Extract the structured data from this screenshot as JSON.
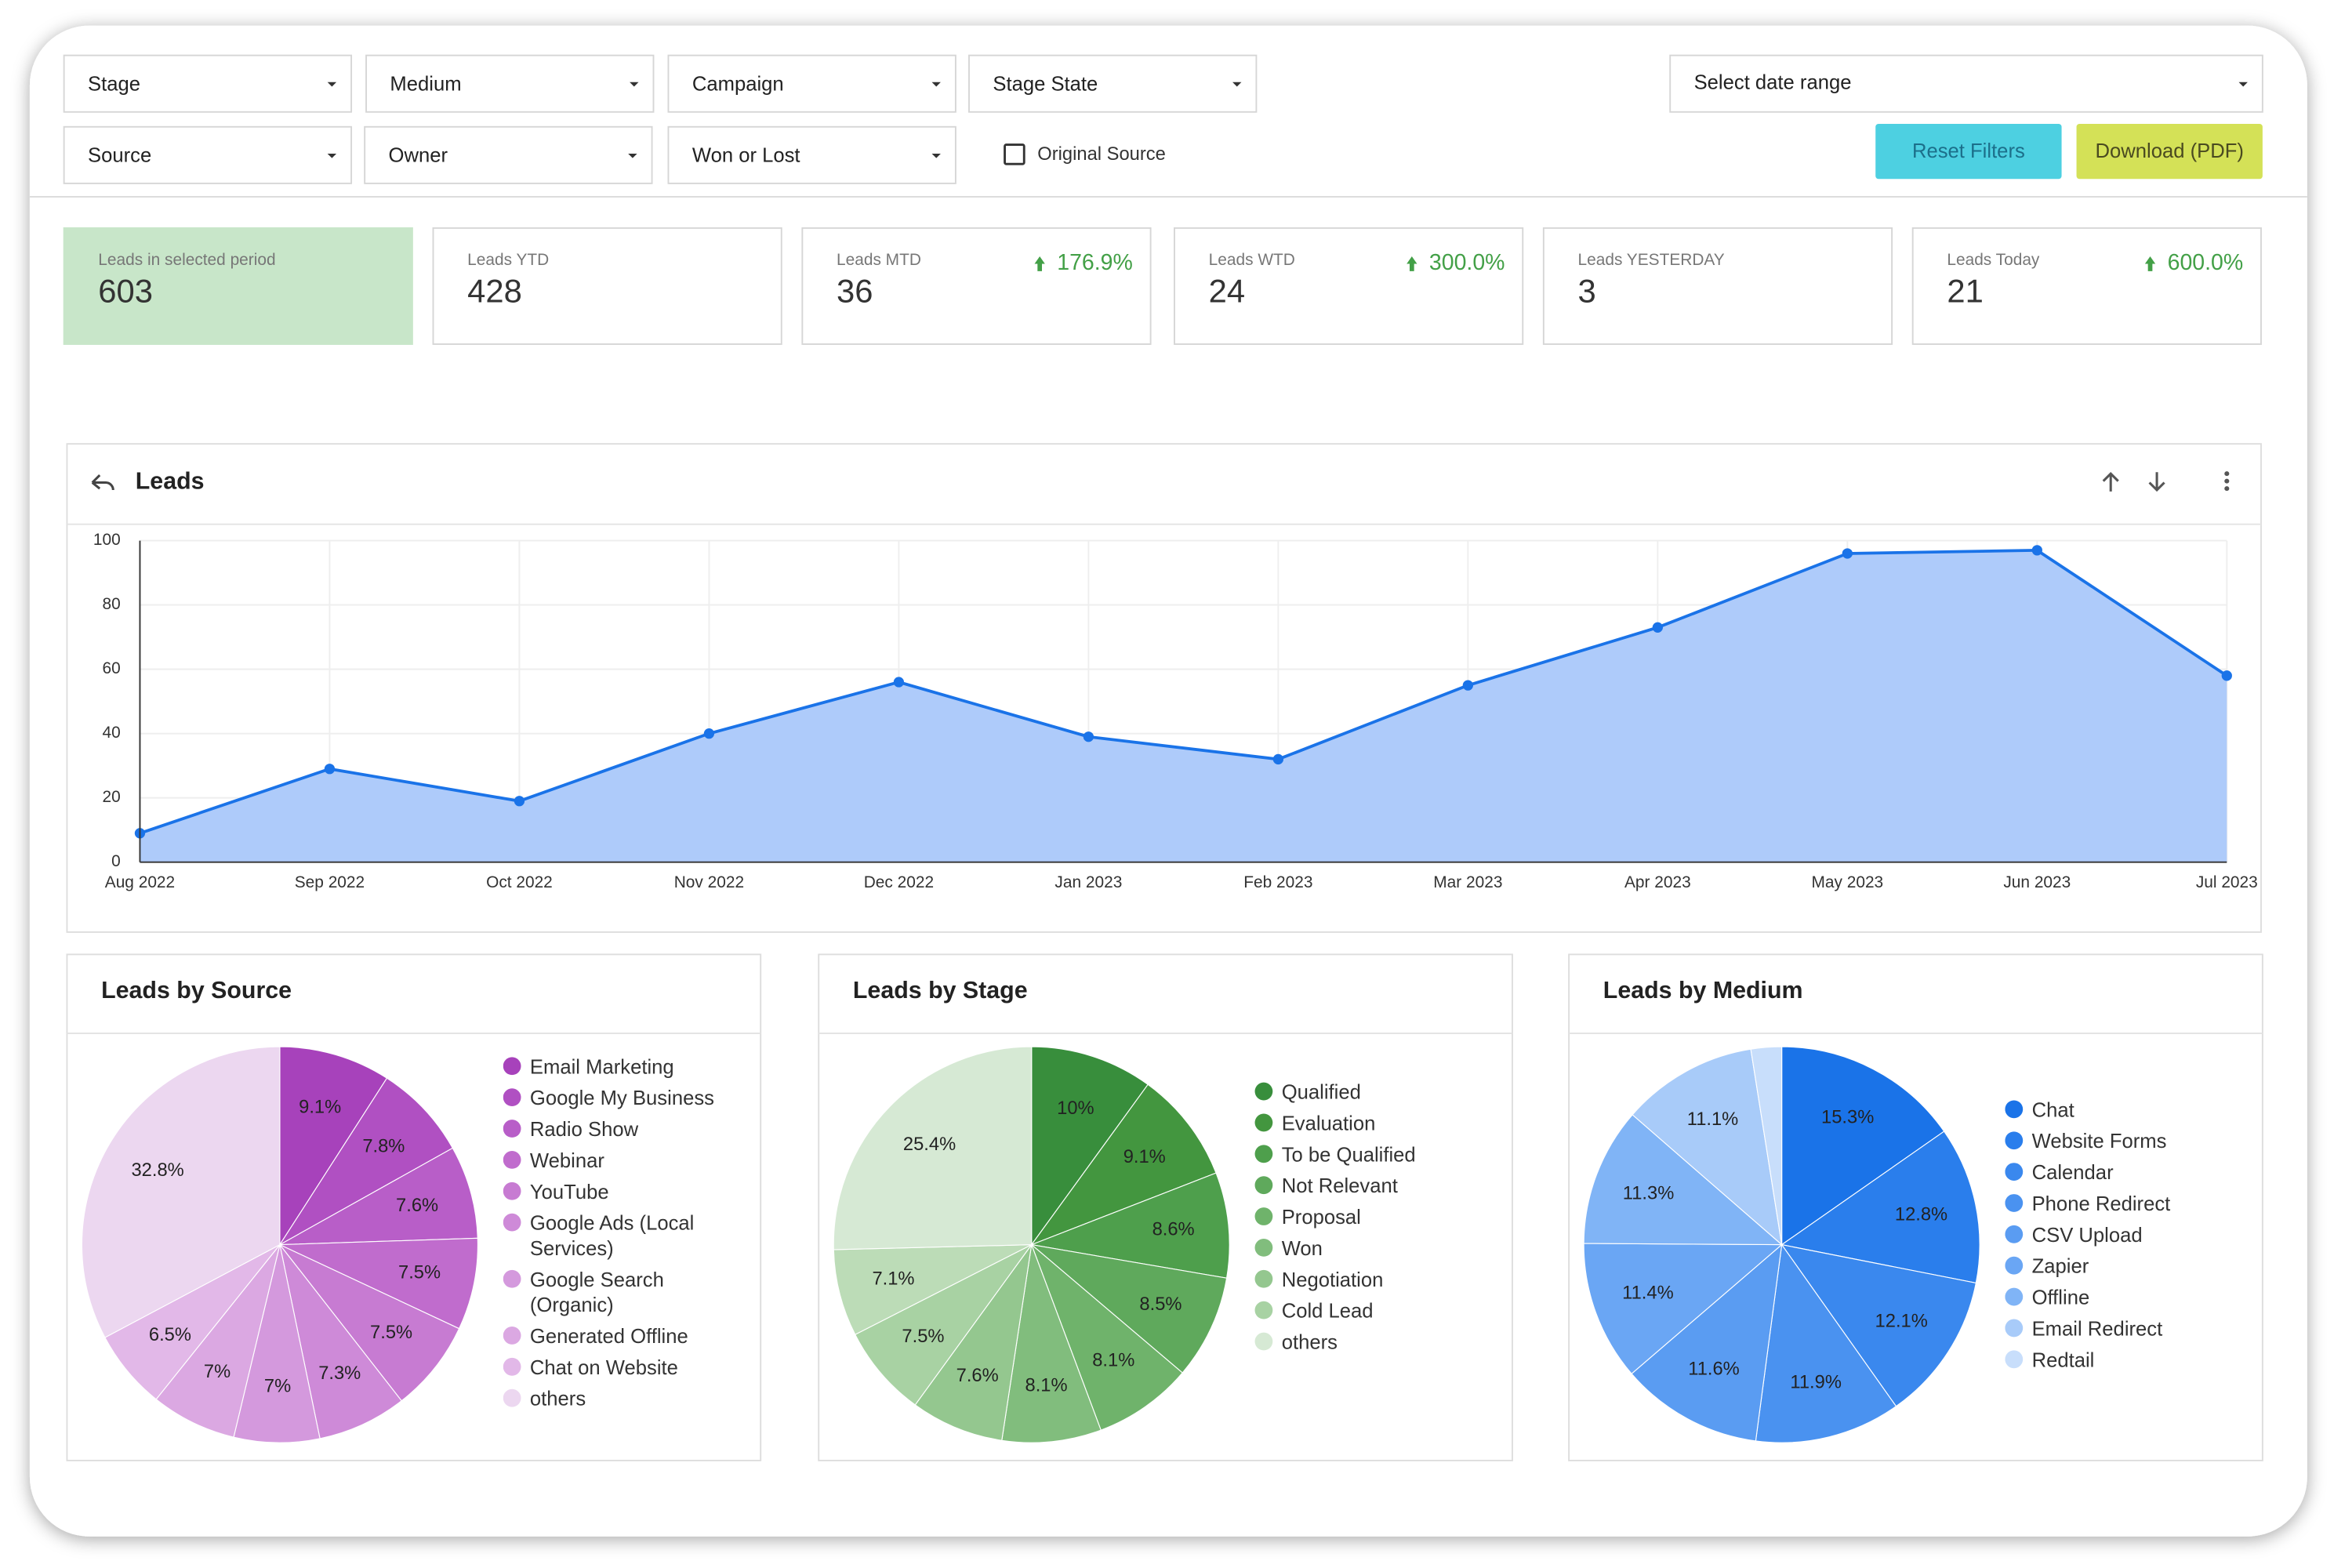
{
  "filters": [
    "Stage",
    "Medium",
    "Campaign",
    "Stage State",
    "Source",
    "Owner",
    "Won or Lost"
  ],
  "date_range": "Select date range",
  "checkbox": "Original Source",
  "buttons": [
    "Reset Filters",
    "Download (PDF)"
  ],
  "kpis": [
    {
      "label": "Leads in selected period",
      "value": "603"
    },
    {
      "label": "Leads YTD",
      "value": "428"
    },
    {
      "label": "Leads MTD",
      "value": "36",
      "change": "176.9%"
    },
    {
      "label": "Leads WTD",
      "value": "24",
      "change": "300.0%"
    },
    {
      "label": "Leads YESTERDAY",
      "value": "3"
    },
    {
      "label": "Leads Today",
      "value": "21",
      "change": "600.0%"
    }
  ],
  "chart_data": [
    {
      "type": "line",
      "title": "Leads",
      "categories": [
        "Aug 2022",
        "Sep 2022",
        "Oct 2022",
        "Nov 2022",
        "Dec 2022",
        "Jan 2023",
        "Feb 2023",
        "Mar 2023",
        "Apr 2023",
        "May 2023",
        "Jun 2023",
        "Jul 2023"
      ],
      "values": [
        9,
        29,
        19,
        40,
        56,
        39,
        32,
        55,
        73,
        96,
        97,
        58
      ],
      "color": "#1a73e8",
      "area_color": "#aecbfa",
      "ylim": [
        0,
        100
      ],
      "yticks": [
        0,
        20,
        40,
        60,
        80,
        100
      ],
      "grid": true
    },
    {
      "type": "pie",
      "title": "Leads by Source",
      "categories": [
        "Email Marketing",
        "Google My Business",
        "Radio Show",
        "Webinar",
        "YouTube",
        "Google Ads (Local Services)",
        "Google Search (Organic)",
        "Generated Offline",
        "Chat on Website",
        "others"
      ],
      "values": [
        9.1,
        7.8,
        7.6,
        7.5,
        7.5,
        7.3,
        7,
        7,
        6.5,
        32.8
      ],
      "value_labels": [
        "9.1%",
        "7.8%",
        "7.6%",
        "7.5%",
        "7.5%",
        "7.3%",
        "7%",
        "7%",
        "6.5%",
        "32.8%"
      ],
      "colors": [
        "#a742bb",
        "#b050c2",
        "#b85ec8",
        "#c06ccd",
        "#c77bd2",
        "#ce8ad8",
        "#d499dd",
        "#dba8e2",
        "#e2b8e8",
        "#ecd7f0"
      ]
    },
    {
      "type": "pie",
      "title": "Leads by Stage",
      "categories": [
        "Qualified",
        "Evaluation",
        "To be Qualified",
        "Not Relevant",
        "Proposal",
        "Won",
        "Negotiation",
        "Cold Lead",
        null,
        "others"
      ],
      "values": [
        10,
        9.1,
        8.6,
        8.5,
        8.1,
        8.1,
        7.6,
        7.5,
        7.1,
        25.4
      ],
      "value_labels": [
        "10%",
        "9.1%",
        "8.6%",
        "8.5%",
        "8.1%",
        "8.1%",
        "7.6%",
        "7.5%",
        "7.1%",
        "25.4%"
      ],
      "colors": [
        "#388e3c",
        "#43963f",
        "#4e9f4c",
        "#5fa95c",
        "#6fb36b",
        "#81bd7d",
        "#94c78f",
        "#a8d2a3",
        "#bcdcb7",
        "#d6e9d4"
      ]
    },
    {
      "type": "pie",
      "title": "Leads by Medium",
      "categories": [
        "Chat",
        "Website Forms",
        "Calendar",
        "Phone Redirect",
        "CSV Upload",
        "Zapier",
        "Offline",
        "Email Redirect",
        "Redtail"
      ],
      "values": [
        15.3,
        12.8,
        12.1,
        11.9,
        11.6,
        11.4,
        11.3,
        11.1,
        2.5
      ],
      "value_labels": [
        "15.3%",
        "12.8%",
        "12.1%",
        "11.9%",
        "11.6%",
        "11.4%",
        "11.3%",
        "11.1%",
        null
      ],
      "colors": [
        "#1a73e8",
        "#2a7eec",
        "#3a88ee",
        "#4a92f0",
        "#5a9cf2",
        "#6aa6f4",
        "#80b4f6",
        "#a8cbf9",
        "#c8defb"
      ]
    }
  ]
}
